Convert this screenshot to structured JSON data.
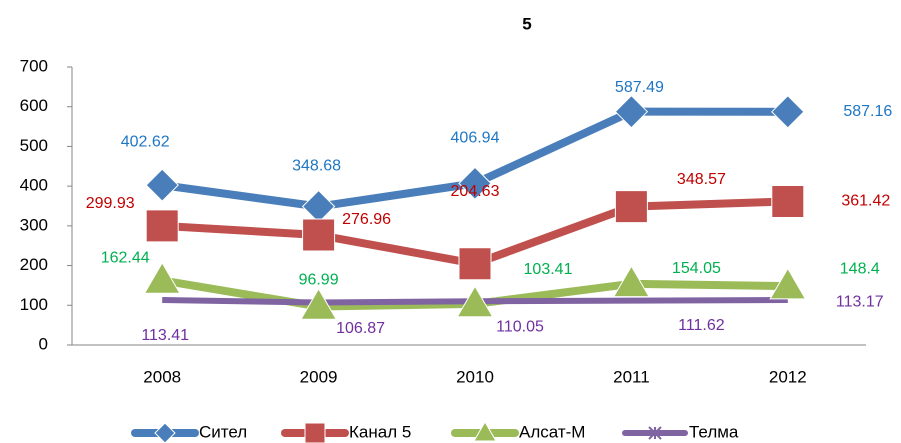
{
  "chart_data": {
    "type": "line",
    "title": "5",
    "categories": [
      "2008",
      "2009",
      "2010",
      "2011",
      "2012"
    ],
    "series": [
      {
        "name": "Сител",
        "color": "#4a7ebb",
        "label_color": "#1f77c4",
        "marker": "diamond",
        "values": [
          402.62,
          348.68,
          406.94,
          587.49,
          587.16
        ]
      },
      {
        "name": "Канал 5",
        "color": "#c0504d",
        "label_color": "#c00000",
        "marker": "square",
        "values": [
          299.93,
          276.96,
          204.63,
          348.57,
          361.42
        ]
      },
      {
        "name": "Алсат-М",
        "color": "#9bbb59",
        "label_color": "#00b050",
        "marker": "triangle",
        "values": [
          162.44,
          96.99,
          103.41,
          154.05,
          148.4
        ]
      },
      {
        "name": "Телма",
        "color": "#8064a2",
        "label_color": "#7030a0",
        "marker": "star",
        "values": [
          113.41,
          106.87,
          110.05,
          111.62,
          113.17
        ]
      }
    ],
    "ylim": [
      0,
      700
    ],
    "yticks": [
      0,
      100,
      200,
      300,
      400,
      500,
      600,
      700
    ],
    "grid": false
  }
}
